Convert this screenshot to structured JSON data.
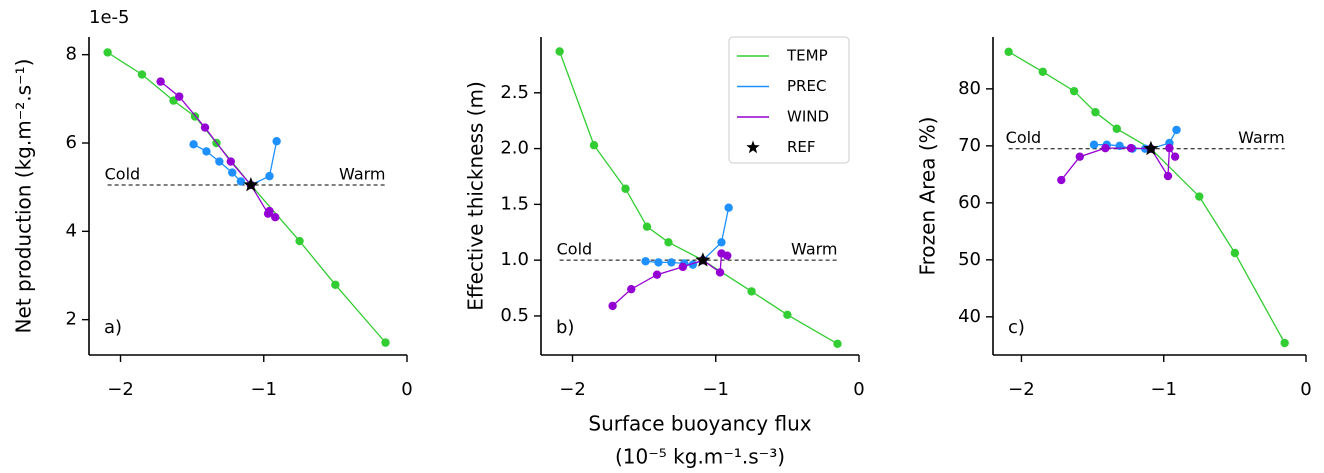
{
  "chart_data": [
    {
      "type": "line",
      "panel_label": "a)",
      "ylabel": "Net production (kg.m⁻².s⁻¹)",
      "y_offset_label": "1e-5",
      "annotations": [
        "Cold",
        "Warm"
      ],
      "xlim": [
        -2.22,
        0
      ],
      "xticks": [
        {
          "value": -2,
          "label": "−2"
        },
        {
          "value": -1,
          "label": "−1"
        },
        0
      ],
      "ylim": [
        1.2,
        8.4
      ],
      "yticks": [
        2,
        4,
        6,
        8
      ],
      "series": [
        {
          "color": "#32cd32",
          "x": [
            -2.09,
            -1.85,
            -1.63,
            -1.48,
            -1.33,
            -1.09,
            -0.75,
            -0.5,
            -0.15
          ],
          "values": [
            8.05,
            7.55,
            6.96,
            6.6,
            6.0,
            5.05,
            3.78,
            2.79,
            1.48
          ]
        },
        {
          "color": "#1e90ff",
          "x": [
            -1.49,
            -1.4,
            -1.31,
            -1.22,
            -1.16,
            -1.09,
            -0.96,
            -0.91
          ],
          "values": [
            5.97,
            5.81,
            5.58,
            5.33,
            5.13,
            5.05,
            5.25,
            6.04
          ]
        },
        {
          "color": "#9400d3",
          "x": [
            -1.72,
            -1.59,
            -1.41,
            -1.23,
            -1.09,
            -0.97,
            -0.96,
            -0.92
          ],
          "values": [
            7.39,
            7.05,
            6.35,
            5.58,
            5.05,
            4.4,
            4.46,
            4.32
          ]
        },
        {
          "color": "#000000",
          "marker": "star",
          "x": [
            -1.09
          ],
          "values": [
            5.05
          ]
        }
      ]
    },
    {
      "type": "line",
      "panel_label": "b)",
      "ylabel": "Effective thickness (m)",
      "xlabel": [
        "Surface buoyancy flux",
        "(10⁻⁵ kg.m⁻¹.s⁻³)"
      ],
      "annotations": [
        "Cold",
        "Warm"
      ],
      "legend": "upper right",
      "xlim": [
        -2.22,
        0
      ],
      "xticks": [
        {
          "value": -2,
          "label": "−2"
        },
        {
          "value": -1,
          "label": "−1"
        },
        0
      ],
      "ylim": [
        0.15,
        3.0
      ],
      "yticks": [
        0.5,
        {
          "value": 1,
          "label": "1.0"
        },
        1.5,
        {
          "value": 2,
          "label": "2.0"
        },
        2.5
      ],
      "series": [
        {
          "name": "TEMP",
          "color": "#32cd32",
          "x": [
            -2.09,
            -1.85,
            -1.63,
            -1.48,
            -1.33,
            -1.09,
            -0.75,
            -0.5,
            -0.15
          ],
          "values": [
            2.87,
            2.03,
            1.64,
            1.3,
            1.16,
            1.0,
            0.72,
            0.51,
            0.25
          ]
        },
        {
          "name": "PREC",
          "color": "#1e90ff",
          "x": [
            -1.49,
            -1.4,
            -1.31,
            -1.22,
            -1.16,
            -1.09,
            -0.96,
            -0.91
          ],
          "values": [
            0.99,
            0.98,
            0.98,
            0.97,
            0.96,
            1.0,
            1.16,
            1.47
          ]
        },
        {
          "name": "WIND",
          "color": "#9400d3",
          "x": [
            -1.72,
            -1.59,
            -1.41,
            -1.23,
            -1.09,
            -0.97,
            -0.96,
            -0.92
          ],
          "values": [
            0.59,
            0.74,
            0.87,
            0.94,
            1.0,
            0.89,
            1.06,
            1.04
          ]
        },
        {
          "name": "REF",
          "color": "#000000",
          "marker": "star",
          "x": [
            -1.09
          ],
          "values": [
            1.0
          ]
        }
      ]
    },
    {
      "type": "line",
      "panel_label": "c)",
      "ylabel": "Frozen Area (%)",
      "annotations": [
        "Cold",
        "Warm"
      ],
      "xlim": [
        -2.2,
        0
      ],
      "xticks": [
        {
          "value": -2,
          "label": "−2"
        },
        {
          "value": -1,
          "label": "−1"
        },
        0
      ],
      "ylim": [
        33.3,
        89.1
      ],
      "yticks": [
        40,
        50,
        60,
        70,
        80
      ],
      "series": [
        {
          "color": "#32cd32",
          "x": [
            -2.09,
            -1.85,
            -1.63,
            -1.48,
            -1.33,
            -1.09,
            -0.75,
            -0.5,
            -0.15
          ],
          "values": [
            86.5,
            83.0,
            79.6,
            75.9,
            73.0,
            69.5,
            61.1,
            51.2,
            35.4
          ]
        },
        {
          "color": "#1e90ff",
          "x": [
            -1.49,
            -1.4,
            -1.31,
            -1.22,
            -1.13,
            -1.09,
            -0.96,
            -0.91
          ],
          "values": [
            70.2,
            70.2,
            70.0,
            69.5,
            69.5,
            69.5,
            70.5,
            72.8
          ]
        },
        {
          "color": "#9400d3",
          "x": [
            -1.72,
            -1.59,
            -1.41,
            -1.23,
            -1.09,
            -0.97,
            -0.96,
            -0.92
          ],
          "values": [
            64.0,
            68.1,
            69.6,
            69.6,
            69.5,
            64.7,
            69.6,
            68.1
          ]
        },
        {
          "color": "#000000",
          "marker": "star",
          "x": [
            -1.09
          ],
          "values": [
            69.5
          ]
        }
      ]
    }
  ]
}
